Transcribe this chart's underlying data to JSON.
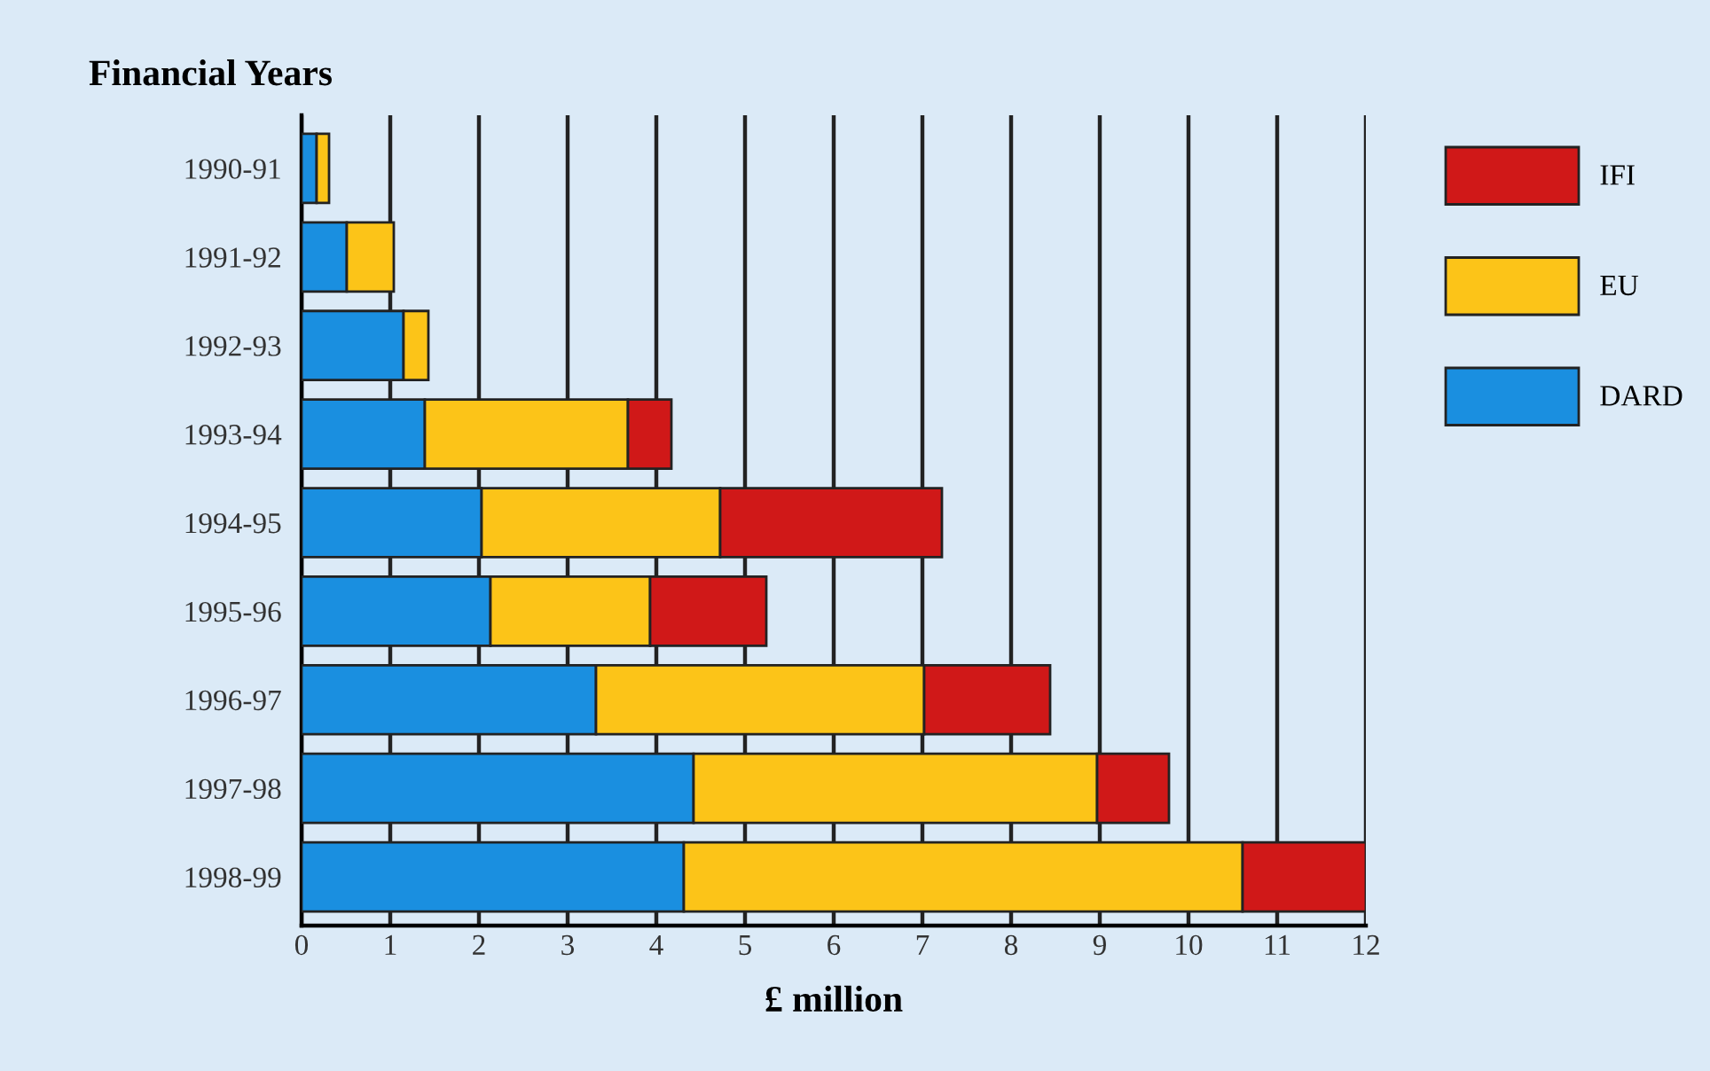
{
  "chart_data": {
    "type": "bar",
    "orientation": "horizontal",
    "stacked": true,
    "title": "Financial Years",
    "xlabel": "£ million",
    "categories": [
      "1990-91",
      "1991-92",
      "1992-93",
      "1993-94",
      "1994-95",
      "1995-96",
      "1996-97",
      "1997-98",
      "1998-99"
    ],
    "series": [
      {
        "name": "DARD",
        "color": "#1a8fe0",
        "values": [
          0.17,
          0.51,
          1.15,
          1.39,
          2.03,
          2.13,
          3.32,
          4.42,
          4.31
        ]
      },
      {
        "name": "EU",
        "color": "#fcc418",
        "values": [
          0.14,
          0.53,
          0.28,
          2.29,
          2.69,
          1.8,
          3.7,
          4.55,
          6.3
        ]
      },
      {
        "name": "IFI",
        "color": "#d01818",
        "values": [
          null,
          null,
          null,
          0.49,
          2.5,
          1.31,
          1.42,
          0.81,
          1.39
        ]
      }
    ],
    "xlim": [
      0,
      12
    ],
    "xticks": [
      0,
      1,
      2,
      3,
      4,
      5,
      6,
      7,
      8,
      9,
      10,
      11,
      12
    ],
    "grid": "x",
    "legend": "top right"
  }
}
